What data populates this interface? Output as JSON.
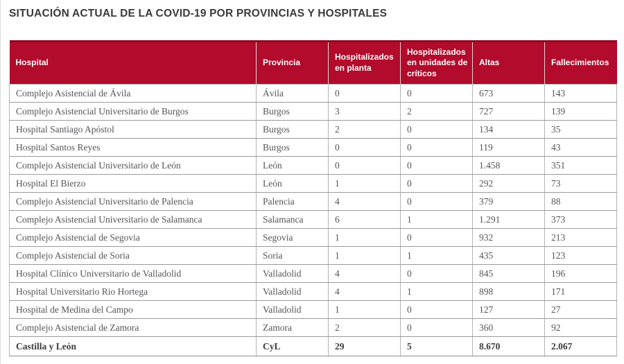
{
  "title": "SITUACIÓN ACTUAL DE LA COVID-19 POR PROVINCIAS Y HOSPITALES",
  "colors": {
    "header_background": "#b20b2b",
    "header_top_border": "#8f0a23",
    "header_text": "#ffffff",
    "title_text": "#3a3a3a",
    "body_text": "#555459",
    "row_border": "#9a9a9a"
  },
  "table": {
    "columns": [
      "Hospital",
      "Provincia",
      "Hospitalizados en planta",
      "Hospitalizados en unidades de críticos",
      "Altas",
      "Fallecimientos"
    ],
    "rows": [
      {
        "hospital": "Complejo Asistencial de Ávila",
        "provincia": "Ávila",
        "planta": "0",
        "uci": "0",
        "altas": "673",
        "fallecimientos": "143"
      },
      {
        "hospital": "Complejo Asistencial Universitario de Burgos",
        "provincia": "Burgos",
        "planta": "3",
        "uci": "2",
        "altas": "727",
        "fallecimientos": "139"
      },
      {
        "hospital": "Hospital Santiago Apóstol",
        "provincia": "Burgos",
        "planta": "2",
        "uci": "0",
        "altas": "134",
        "fallecimientos": "35"
      },
      {
        "hospital": "Hospital Santos Reyes",
        "provincia": "Burgos",
        "planta": "0",
        "uci": "0",
        "altas": "119",
        "fallecimientos": "43"
      },
      {
        "hospital": "Complejo Asistencial Universitario de León",
        "provincia": "León",
        "planta": "0",
        "uci": "0",
        "altas": "1.458",
        "fallecimientos": "351"
      },
      {
        "hospital": "Hospital El Bierzo",
        "provincia": "León",
        "planta": "1",
        "uci": "0",
        "altas": "292",
        "fallecimientos": "73"
      },
      {
        "hospital": "Complejo Asistencial Universitario de Palencia",
        "provincia": "Palencia",
        "planta": "4",
        "uci": "0",
        "altas": "379",
        "fallecimientos": "88"
      },
      {
        "hospital": "Complejo Asistencial Universitario de Salamanca",
        "provincia": "Salamanca",
        "planta": "6",
        "uci": "1",
        "altas": "1.291",
        "fallecimientos": "373"
      },
      {
        "hospital": "Complejo Asistencial de Segovia",
        "provincia": "Segovia",
        "planta": "1",
        "uci": "0",
        "altas": "932",
        "fallecimientos": "213"
      },
      {
        "hospital": "Complejo Asistencial de Soria",
        "provincia": "Soria",
        "planta": "1",
        "uci": "1",
        "altas": "435",
        "fallecimientos": "123"
      },
      {
        "hospital": "Hospital Clínico Universitario de Valladolid",
        "provincia": "Valladolid",
        "planta": "4",
        "uci": "0",
        "altas": "845",
        "fallecimientos": "196"
      },
      {
        "hospital": "Hospital Universitario Rio Hortega",
        "provincia": "Valladolid",
        "planta": "4",
        "uci": "1",
        "altas": "898",
        "fallecimientos": "171"
      },
      {
        "hospital": "Hospital de Medina del Campo",
        "provincia": "Valladolid",
        "planta": "1",
        "uci": "0",
        "altas": "127",
        "fallecimientos": "27"
      },
      {
        "hospital": "Complejo Asistencial de Zamora",
        "provincia": "Zamora",
        "planta": "2",
        "uci": "0",
        "altas": "360",
        "fallecimientos": "92"
      }
    ],
    "total": {
      "hospital": "Castilla y León",
      "provincia": "CyL",
      "planta": "29",
      "uci": "5",
      "altas": "8.670",
      "fallecimientos": "2.067"
    }
  },
  "chart_data": {
    "type": "table",
    "title": "SITUACIÓN ACTUAL DE LA COVID-19 POR PROVINCIAS Y HOSPITALES",
    "columns": [
      "Hospital",
      "Provincia",
      "Hospitalizados en planta",
      "Hospitalizados en unidades de críticos",
      "Altas",
      "Fallecimientos"
    ],
    "rows": [
      [
        "Complejo Asistencial de Ávila",
        "Ávila",
        0,
        0,
        673,
        143
      ],
      [
        "Complejo Asistencial Universitario de Burgos",
        "Burgos",
        3,
        2,
        727,
        139
      ],
      [
        "Hospital Santiago Apóstol",
        "Burgos",
        2,
        0,
        134,
        35
      ],
      [
        "Hospital Santos Reyes",
        "Burgos",
        0,
        0,
        119,
        43
      ],
      [
        "Complejo Asistencial Universitario de León",
        "León",
        0,
        0,
        1458,
        351
      ],
      [
        "Hospital El Bierzo",
        "León",
        1,
        0,
        292,
        73
      ],
      [
        "Complejo Asistencial Universitario de Palencia",
        "Palencia",
        4,
        0,
        379,
        88
      ],
      [
        "Complejo Asistencial Universitario de Salamanca",
        "Salamanca",
        6,
        1,
        1291,
        373
      ],
      [
        "Complejo Asistencial de Segovia",
        "Segovia",
        1,
        0,
        932,
        213
      ],
      [
        "Complejo Asistencial de Soria",
        "Soria",
        1,
        1,
        435,
        123
      ],
      [
        "Hospital Clínico Universitario de Valladolid",
        "Valladolid",
        4,
        0,
        845,
        196
      ],
      [
        "Hospital Universitario Rio Hortega",
        "Valladolid",
        4,
        1,
        898,
        171
      ],
      [
        "Hospital de Medina del Campo",
        "Valladolid",
        1,
        0,
        127,
        27
      ],
      [
        "Complejo Asistencial de Zamora",
        "Zamora",
        2,
        0,
        360,
        92
      ]
    ],
    "total_row": [
      "Castilla y León",
      "CyL",
      29,
      5,
      8670,
      2067
    ]
  }
}
